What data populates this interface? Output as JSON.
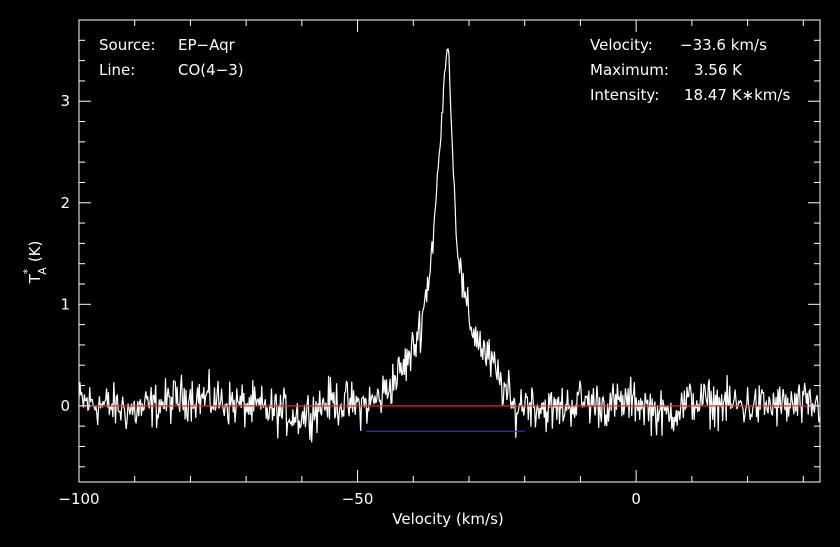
{
  "info_left": {
    "source_label": "Source:",
    "source_value": "EP−Aqr",
    "line_label": "Line:",
    "line_value": "CO(4−3)"
  },
  "info_right": {
    "velocity_label": "Velocity:",
    "velocity_value": "−33.6 km/s",
    "maximum_label": "Maximum:",
    "maximum_value": "3.56 K",
    "intensity_label": "Intensity:",
    "intensity_value": "18.47 K∗km/s"
  },
  "colors": {
    "background": "#000000",
    "spectrum": "#ffffff",
    "baseline": "#ff2020",
    "integration_range": "#2a2aff"
  },
  "chart_data": {
    "type": "line",
    "xlabel": "Velocity (km/s)",
    "ylabel_main": "T",
    "ylabel_sub": "A",
    "ylabel_sup": "*",
    "ylabel_unit": "(K)",
    "xlim": [
      -100,
      33
    ],
    "ylim": [
      -0.75,
      3.8
    ],
    "x_ticks": [
      -100,
      -50,
      0
    ],
    "x_tick_labels": [
      "−100",
      "−50",
      "0"
    ],
    "y_ticks": [
      0,
      1,
      2,
      3
    ],
    "y_tick_labels": [
      "0",
      "1",
      "2",
      "3"
    ],
    "grid": false,
    "baseline_y": 0,
    "integration_range": {
      "x": [
        -48.5,
        -20
      ],
      "y": -0.25
    },
    "peak": {
      "x": -33.6,
      "y": 3.56
    },
    "series": [
      {
        "x": [
          -100,
          -90,
          -80,
          -70,
          -60,
          -55,
          -50,
          -48,
          -46,
          -44,
          -42,
          -40,
          -38.5,
          -37,
          -36,
          -35,
          -34.3,
          -33.9,
          -33.6,
          -33.3,
          -32.8,
          -32,
          -31,
          -30,
          -29,
          -28,
          -27,
          -26,
          -25,
          -24,
          -23,
          -22,
          -21,
          -20,
          -15,
          -10,
          -5,
          0,
          5,
          10,
          20,
          33
        ],
        "y": [
          0.05,
          -0.05,
          0.1,
          0.0,
          -0.1,
          0.05,
          0.0,
          0.02,
          0.08,
          0.22,
          0.35,
          0.55,
          0.85,
          1.35,
          1.95,
          2.7,
          3.35,
          3.56,
          3.45,
          3.0,
          2.3,
          1.55,
          1.1,
          0.85,
          0.72,
          0.62,
          0.5,
          0.42,
          0.3,
          0.2,
          0.1,
          -0.05,
          0.0,
          0.05,
          -0.05,
          0.05,
          0.0,
          0.05,
          -0.1,
          0.05,
          0.0,
          0.0
        ]
      }
    ]
  }
}
